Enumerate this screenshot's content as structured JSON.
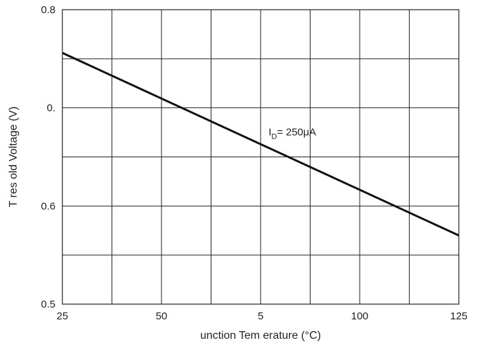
{
  "chart_data": {
    "type": "line",
    "title": "",
    "xlabel": "unction Tem erature (°C)",
    "ylabel": "T res old Voltage (V)",
    "xlim": [
      25,
      125
    ],
    "ylim": [
      0.5,
      0.8
    ],
    "x_ticks": [
      25,
      37.5,
      50,
      62.5,
      75,
      87.5,
      100,
      112.5,
      125
    ],
    "y_ticks": [
      0.5,
      0.55,
      0.6,
      0.65,
      0.7,
      0.75,
      0.8
    ],
    "x_tick_labels": [
      {
        "value": 25,
        "label": "25"
      },
      {
        "value": 50,
        "label": "50"
      },
      {
        "value": 75,
        "label": "5"
      },
      {
        "value": 100,
        "label": "100"
      },
      {
        "value": 125,
        "label": "125"
      }
    ],
    "y_tick_labels": [
      {
        "value": 0.8,
        "label": "0.8"
      },
      {
        "value": 0.7,
        "label": "0."
      },
      {
        "value": 0.6,
        "label": "0.6"
      },
      {
        "value": 0.5,
        "label": "0.5"
      }
    ],
    "grid": true,
    "series": [
      {
        "name": "",
        "x": [
          25,
          125
        ],
        "y": [
          0.756,
          0.57
        ]
      }
    ],
    "annotations": [
      {
        "text_main": "I",
        "text_sub": "D",
        "text_rest": "= 250μA",
        "x": 77,
        "y": 0.672
      }
    ]
  }
}
